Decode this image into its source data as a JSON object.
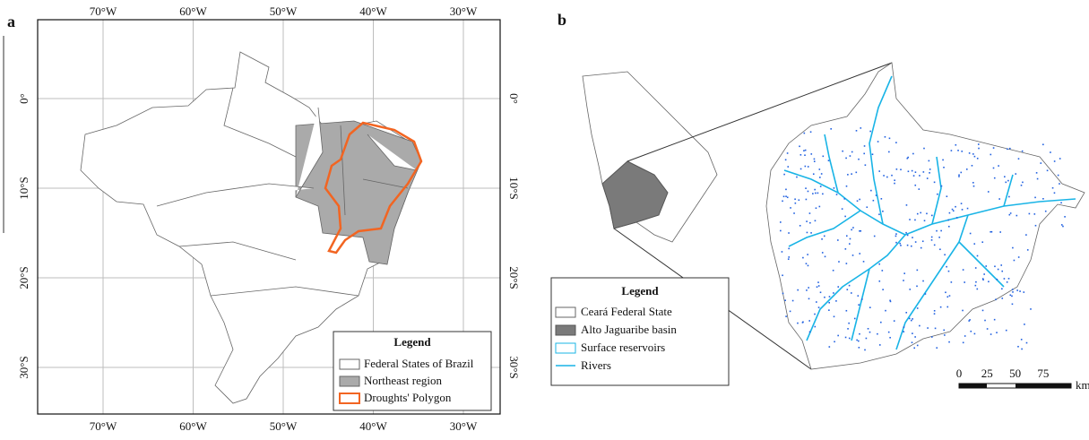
{
  "panel_a": {
    "label": "a",
    "lon_ticks": [
      "70°W",
      "60°W",
      "50°W",
      "40°W",
      "30°W"
    ],
    "lat_ticks": [
      "0°",
      "10°S",
      "20°S",
      "30°S"
    ],
    "legend": {
      "title": "Legend",
      "items": [
        "Federal States of Brazil",
        "Northeast region",
        "Droughts' Polygon"
      ]
    }
  },
  "panel_b": {
    "label": "b",
    "legend": {
      "title": "Legend",
      "items": [
        "Ceará Federal State",
        "Alto Jaguaribe basin",
        "Surface reservoirs",
        "Rivers"
      ]
    },
    "scale_bar": {
      "labels": [
        "0",
        "25",
        "50",
        "75"
      ],
      "unit": "km"
    }
  }
}
